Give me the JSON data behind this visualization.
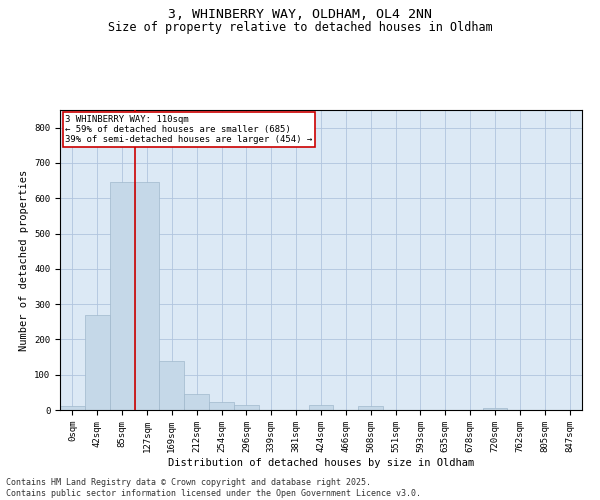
{
  "title_line1": "3, WHINBERRY WAY, OLDHAM, OL4 2NN",
  "title_line2": "Size of property relative to detached houses in Oldham",
  "xlabel": "Distribution of detached houses by size in Oldham",
  "ylabel": "Number of detached properties",
  "categories": [
    "0sqm",
    "42sqm",
    "85sqm",
    "127sqm",
    "169sqm",
    "212sqm",
    "254sqm",
    "296sqm",
    "339sqm",
    "381sqm",
    "424sqm",
    "466sqm",
    "508sqm",
    "551sqm",
    "593sqm",
    "635sqm",
    "678sqm",
    "720sqm",
    "762sqm",
    "805sqm",
    "847sqm"
  ],
  "bar_values": [
    10,
    270,
    645,
    645,
    140,
    45,
    22,
    15,
    0,
    0,
    14,
    0,
    12,
    0,
    0,
    0,
    0,
    5,
    0,
    0,
    0
  ],
  "bar_color": "#c5d8e8",
  "bar_edgecolor": "#a0b8cc",
  "vline_pos": 2.5,
  "vline_color": "#cc0000",
  "annotation_text": "3 WHINBERRY WAY: 110sqm\n← 59% of detached houses are smaller (685)\n39% of semi-detached houses are larger (454) →",
  "annotation_box_color": "#cc0000",
  "ylim": [
    0,
    850
  ],
  "yticks": [
    0,
    100,
    200,
    300,
    400,
    500,
    600,
    700,
    800
  ],
  "grid_color": "#b0c4de",
  "background_color": "#dce9f5",
  "footer_line1": "Contains HM Land Registry data © Crown copyright and database right 2025.",
  "footer_line2": "Contains public sector information licensed under the Open Government Licence v3.0.",
  "title_fontsize": 9.5,
  "subtitle_fontsize": 8.5,
  "axis_fontsize": 7.5,
  "tick_fontsize": 6.5,
  "annot_fontsize": 6.5,
  "footer_fontsize": 6
}
